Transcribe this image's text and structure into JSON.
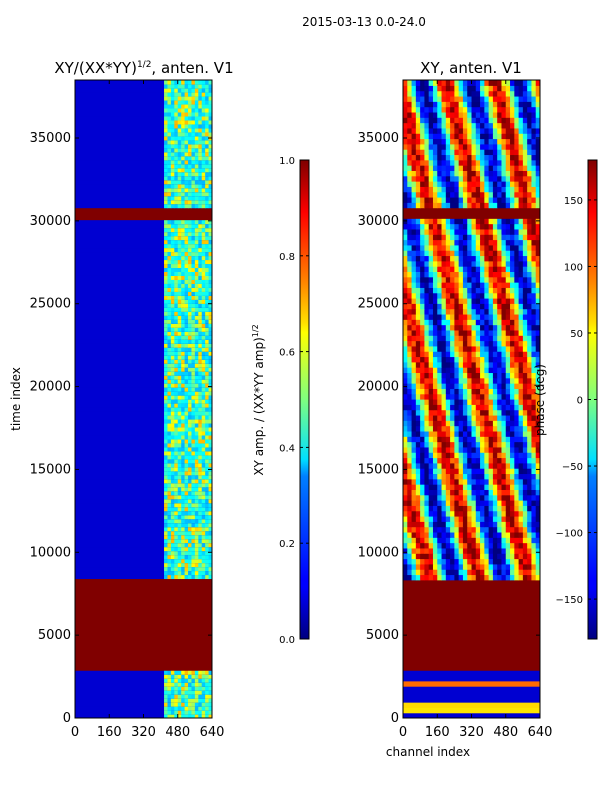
{
  "suptitle": "2015-03-13 0.0-24.0",
  "chart_data": [
    {
      "type": "heatmap",
      "title": "XY/(XX*YY)^{1/2}, anten. V1",
      "title_main": "XY/(XX*YY)",
      "title_sup": "1/2",
      "title_tail": ", anten. V1",
      "xlabel": "",
      "ylabel": "time index",
      "xlim": [
        0,
        640
      ],
      "ylim": [
        0,
        38500
      ],
      "xticks": [
        0,
        160,
        320,
        480,
        640
      ],
      "yticks": [
        0,
        5000,
        10000,
        15000,
        20000,
        25000,
        30000,
        35000
      ],
      "colormap": "jet",
      "colorbar": {
        "label_main": "XY amp. / (XX*YY amp)",
        "label_sup": "1/2",
        "range": [
          0.0,
          1.0
        ],
        "ticks": [
          "0.0",
          "0.2",
          "0.4",
          "0.6",
          "0.8",
          "1.0"
        ],
        "tick_values": [
          0.0,
          0.2,
          0.4,
          0.6,
          0.8,
          1.0
        ]
      },
      "flagged_time_ranges": [
        [
          2900,
          8500
        ],
        [
          30000,
          30700
        ]
      ],
      "description_values": {
        "background_level": 0.08,
        "active_channel_range": [
          410,
          640
        ],
        "active_level_range": [
          0.3,
          0.7
        ]
      }
    },
    {
      "type": "heatmap",
      "title": "XY, anten. V1",
      "xlabel": "channel index",
      "ylabel": "",
      "xlim": [
        0,
        640
      ],
      "ylim": [
        0,
        38500
      ],
      "xticks": [
        0,
        160,
        320,
        480,
        640
      ],
      "yticks": [
        0,
        5000,
        10000,
        15000,
        20000,
        25000,
        30000,
        35000
      ],
      "colormap": "jet",
      "colorbar": {
        "label": "phase (deg)",
        "range": [
          -180,
          180
        ],
        "ticks": [
          "150",
          "100",
          "50",
          "0",
          "−50",
          "−100",
          "−150"
        ],
        "tick_values": [
          150,
          100,
          50,
          0,
          -50,
          -100,
          -150
        ]
      },
      "flagged_time_ranges": [
        [
          2900,
          8500
        ],
        [
          30000,
          30700
        ]
      ]
    }
  ]
}
